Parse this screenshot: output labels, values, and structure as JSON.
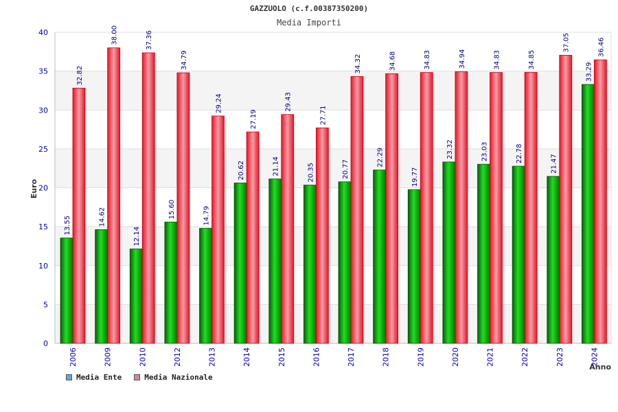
{
  "chart_data": {
    "type": "bar",
    "title": "GAZZUOLO (c.f.00387350200)",
    "subtitle": "Media Importi",
    "xlabel": "Anno",
    "ylabel": "Euro",
    "ylim": [
      0,
      40
    ],
    "yticks": [
      0,
      5,
      10,
      15,
      20,
      25,
      30,
      35,
      40
    ],
    "grid": true,
    "legend_position": "bottom-left",
    "categories": [
      "2006",
      "2009",
      "2010",
      "2012",
      "2013",
      "2014",
      "2015",
      "2016",
      "2017",
      "2018",
      "2019",
      "2020",
      "2021",
      "2022",
      "2023",
      "2024"
    ],
    "series": [
      {
        "name": "Media Ente",
        "color": "#00aa00",
        "legend_color": "#66a3e0",
        "values": [
          13.55,
          14.62,
          12.14,
          15.6,
          14.79,
          20.62,
          21.14,
          20.35,
          20.77,
          22.29,
          19.77,
          23.32,
          23.03,
          22.78,
          21.47,
          33.29
        ],
        "labels": [
          "13.55",
          "14.62",
          "12.14",
          "15.60",
          "14.79",
          "20.62",
          "21.14",
          "20.35",
          "20.77",
          "22.29",
          "19.77",
          "23.32",
          "23.03",
          "22.78",
          "21.47",
          "33.29"
        ]
      },
      {
        "name": "Media Nazionale",
        "color": "#ee1122",
        "legend_color": "#e080a8",
        "values": [
          32.82,
          38.0,
          37.36,
          34.79,
          29.24,
          27.19,
          29.43,
          27.71,
          34.32,
          34.68,
          34.83,
          34.94,
          34.83,
          34.85,
          37.05,
          36.46
        ],
        "labels": [
          "32.82",
          "38.00",
          "37.36",
          "34.79",
          "29.24",
          "27.19",
          "29.43",
          "27.71",
          "34.32",
          "34.68",
          "34.83",
          "34.94",
          "34.83",
          "34.85",
          "37.05",
          "36.46"
        ]
      }
    ]
  }
}
